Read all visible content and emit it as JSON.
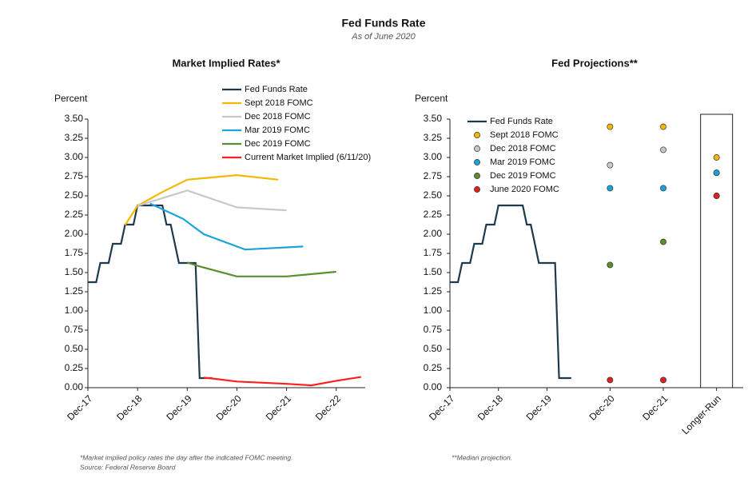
{
  "title": "Fed Funds Rate",
  "subtitle": "As of June 2020",
  "chart_data": [
    {
      "type": "line",
      "title": "Market Implied Rates*",
      "ylabel": "Percent",
      "notes": [
        "*Market implied policy rates the day after the indicated FOMC meeting.",
        "Source: Federal Reserve Board"
      ],
      "xlim": [
        "2017-12",
        "2023-07"
      ],
      "xticks": [
        {
          "value": "2017-12",
          "label": "Dec-17"
        },
        {
          "value": "2018-12",
          "label": "Dec-18"
        },
        {
          "value": "2019-12",
          "label": "Dec-19"
        },
        {
          "value": "2020-12",
          "label": "Dec-20"
        },
        {
          "value": "2021-12",
          "label": "Dec-21"
        },
        {
          "value": "2022-12",
          "label": "Dec-22"
        }
      ],
      "ylim": [
        0,
        3.5
      ],
      "yticks": [
        {
          "value": 0,
          "label": "0.00"
        },
        {
          "value": 0.25,
          "label": "0.25"
        },
        {
          "value": 0.5,
          "label": "0.50"
        },
        {
          "value": 0.75,
          "label": "0.75"
        },
        {
          "value": 1,
          "label": "1.00"
        },
        {
          "value": 1.25,
          "label": "1.25"
        },
        {
          "value": 1.5,
          "label": "1.50"
        },
        {
          "value": 1.75,
          "label": "1.75"
        },
        {
          "value": 2,
          "label": "2.00"
        },
        {
          "value": 2.25,
          "label": "2.25"
        },
        {
          "value": 2.5,
          "label": "2.50"
        },
        {
          "value": 2.75,
          "label": "2.75"
        },
        {
          "value": 3,
          "label": "3.00"
        },
        {
          "value": 3.25,
          "label": "3.25"
        },
        {
          "value": 3.5,
          "label": "3.50"
        }
      ],
      "series": [
        {
          "name": "Fed Funds Rate",
          "color": "#1f3a4d",
          "x": [
            "2017-12",
            "2018-01",
            "2018-02",
            "2018-03",
            "2018-04",
            "2018-05",
            "2018-06",
            "2018-07",
            "2018-08",
            "2018-09",
            "2018-10",
            "2018-11",
            "2018-12",
            "2019-01",
            "2019-02",
            "2019-03",
            "2019-04",
            "2019-05",
            "2019-06",
            "2019-07",
            "2019-08",
            "2019-09",
            "2019-10",
            "2019-11",
            "2019-12",
            "2020-01",
            "2020-02",
            "2020-03",
            "2020-04",
            "2020-05",
            "2020-06"
          ],
          "values": [
            1.375,
            1.375,
            1.375,
            1.625,
            1.625,
            1.625,
            1.875,
            1.875,
            1.875,
            2.125,
            2.125,
            2.125,
            2.375,
            2.375,
            2.375,
            2.375,
            2.375,
            2.375,
            2.375,
            2.125,
            2.125,
            1.875,
            1.625,
            1.625,
            1.625,
            1.625,
            1.625,
            0.125,
            0.125,
            0.125,
            0.125
          ]
        },
        {
          "name": "Sept 2018 FOMC",
          "color": "#f5b800",
          "x": [
            "2018-09",
            "2018-12",
            "2019-06",
            "2019-12",
            "2020-12",
            "2021-10"
          ],
          "values": [
            2.12,
            2.37,
            2.55,
            2.71,
            2.77,
            2.71
          ]
        },
        {
          "name": "Dec 2018 FOMC",
          "color": "#c8c8c8",
          "x": [
            "2018-12",
            "2019-12",
            "2020-12",
            "2021-12"
          ],
          "values": [
            2.37,
            2.57,
            2.35,
            2.31
          ]
        },
        {
          "name": "Mar 2019 FOMC",
          "color": "#1aa3dc",
          "x": [
            "2019-03",
            "2019-11",
            "2020-04",
            "2021-02",
            "2022-04"
          ],
          "values": [
            2.4,
            2.2,
            2.0,
            1.8,
            1.84
          ]
        },
        {
          "name": "Dec 2019 FOMC",
          "color": "#5a8f2e",
          "x": [
            "2019-12",
            "2020-03",
            "2020-12",
            "2021-12",
            "2022-12"
          ],
          "values": [
            1.63,
            1.58,
            1.45,
            1.45,
            1.51
          ]
        },
        {
          "name": "Current Market Implied (6/11/20)",
          "color": "#ff2020",
          "x": [
            "2020-04",
            "2020-06",
            "2020-12",
            "2021-12",
            "2022-06",
            "2022-12",
            "2023-06"
          ],
          "values": [
            0.13,
            0.12,
            0.08,
            0.05,
            0.03,
            0.09,
            0.14
          ]
        }
      ]
    },
    {
      "type": "line",
      "title": "Fed Projections**",
      "ylabel": "Percent",
      "notes": [
        "**Median projection."
      ],
      "xlim": [
        "2017-12",
        "2020-09"
      ],
      "xticks": [
        {
          "value": "2017-12",
          "label": "Dec-17"
        },
        {
          "value": "2018-12",
          "label": "Dec-18"
        },
        {
          "value": "2019-12",
          "label": "Dec-19"
        }
      ],
      "categories": [
        "Dec-20",
        "Dec-21",
        "Longer-Run"
      ],
      "ylim": [
        0,
        3.5
      ],
      "yticks": [
        {
          "value": 0,
          "label": "0.00"
        },
        {
          "value": 0.25,
          "label": "0.25"
        },
        {
          "value": 0.5,
          "label": "0.50"
        },
        {
          "value": 0.75,
          "label": "0.75"
        },
        {
          "value": 1,
          "label": "1.00"
        },
        {
          "value": 1.25,
          "label": "1.25"
        },
        {
          "value": 1.5,
          "label": "1.50"
        },
        {
          "value": 1.75,
          "label": "1.75"
        },
        {
          "value": 2,
          "label": "2.00"
        },
        {
          "value": 2.25,
          "label": "2.25"
        },
        {
          "value": 2.5,
          "label": "2.50"
        },
        {
          "value": 2.75,
          "label": "2.75"
        },
        {
          "value": 3,
          "label": "3.00"
        },
        {
          "value": 3.25,
          "label": "3.25"
        },
        {
          "value": 3.5,
          "label": "3.50"
        }
      ],
      "series": [
        {
          "name": "Fed Funds Rate",
          "type": "line",
          "color": "#1f3a4d",
          "x": [
            "2017-12",
            "2018-01",
            "2018-02",
            "2018-03",
            "2018-04",
            "2018-05",
            "2018-06",
            "2018-07",
            "2018-08",
            "2018-09",
            "2018-10",
            "2018-11",
            "2018-12",
            "2019-01",
            "2019-02",
            "2019-03",
            "2019-04",
            "2019-05",
            "2019-06",
            "2019-07",
            "2019-08",
            "2019-09",
            "2019-10",
            "2019-11",
            "2019-12",
            "2020-01",
            "2020-02",
            "2020-03",
            "2020-04",
            "2020-05",
            "2020-06"
          ],
          "values": [
            1.375,
            1.375,
            1.375,
            1.625,
            1.625,
            1.625,
            1.875,
            1.875,
            1.875,
            2.125,
            2.125,
            2.125,
            2.375,
            2.375,
            2.375,
            2.375,
            2.375,
            2.375,
            2.375,
            2.125,
            2.125,
            1.875,
            1.625,
            1.625,
            1.625,
            1.625,
            1.625,
            0.125,
            0.125,
            0.125,
            0.125
          ]
        },
        {
          "name": "Sept 2018 FOMC",
          "type": "scatter",
          "color": "#f5b800",
          "values": [
            3.4,
            3.4,
            3.0
          ]
        },
        {
          "name": "Dec 2018 FOMC",
          "type": "scatter",
          "color": "#c8c8c8",
          "values": [
            2.9,
            3.1,
            2.8
          ]
        },
        {
          "name": "Mar 2019 FOMC",
          "type": "scatter",
          "color": "#1aa3dc",
          "values": [
            2.6,
            2.6,
            2.8
          ]
        },
        {
          "name": "Dec 2019 FOMC",
          "type": "scatter",
          "color": "#5a8f2e",
          "values": [
            1.6,
            1.9,
            2.5
          ]
        },
        {
          "name": "June 2020 FOMC",
          "type": "scatter",
          "color": "#e02020",
          "values": [
            0.1,
            0.1,
            2.5
          ]
        }
      ]
    }
  ]
}
